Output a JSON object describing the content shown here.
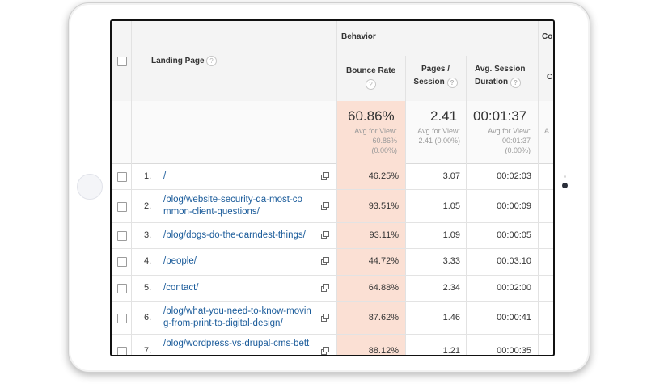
{
  "table": {
    "group_header": "Behavior",
    "group_header_cut": "Co",
    "landing_page_header": "Landing Page",
    "columns": {
      "bounce_rate": "Bounce Rate",
      "pages_session_l1": "Pages /",
      "pages_session_l2": "Session",
      "avg_session_l1": "Avg. Session",
      "avg_session_l2": "Duration",
      "cut_col": "C"
    },
    "help_glyph": "?",
    "summary": {
      "bounce_rate": {
        "value": "60.86%",
        "l1": "Avg for View:",
        "l2": "60.86%",
        "l3": "(0.00%)"
      },
      "pages_session": {
        "value": "2.41",
        "l1": "Avg for View:",
        "l2": "2.41 (0.00%)"
      },
      "avg_duration": {
        "value": "00:01:37",
        "l1": "Avg for View:",
        "l2": "00:01:37",
        "l3": "(0.00%)"
      },
      "cut_col_fragment": "A"
    },
    "rows": [
      {
        "num": "1.",
        "page": "/",
        "bounce": "46.25%",
        "pages": "3.07",
        "duration": "00:02:03"
      },
      {
        "num": "2.",
        "page": "/blog/website-security-qa-most-co mmon-client-questions/",
        "bounce": "93.51%",
        "pages": "1.05",
        "duration": "00:00:09"
      },
      {
        "num": "3.",
        "page": "/blog/dogs-do-the-darndest-things/",
        "bounce": "93.11%",
        "pages": "1.09",
        "duration": "00:00:05"
      },
      {
        "num": "4.",
        "page": "/people/",
        "bounce": "44.72%",
        "pages": "3.33",
        "duration": "00:03:10"
      },
      {
        "num": "5.",
        "page": "/contact/",
        "bounce": "64.88%",
        "pages": "2.34",
        "duration": "00:02:00"
      },
      {
        "num": "6.",
        "page": "/blog/what-you-need-to-know-movin g-from-print-to-digital-design/",
        "bounce": "87.62%",
        "pages": "1.46",
        "duration": "00:00:41"
      },
      {
        "num": "7.",
        "page": "/blog/wordpress-vs-drupal-cms-bett",
        "bounce": "88.12%",
        "pages": "1.21",
        "duration": "00:00:35"
      }
    ]
  },
  "colors": {
    "bounce_highlight": "#fbe0d4",
    "link": "#1a5b9a",
    "header_bg": "#f4f4f4"
  }
}
